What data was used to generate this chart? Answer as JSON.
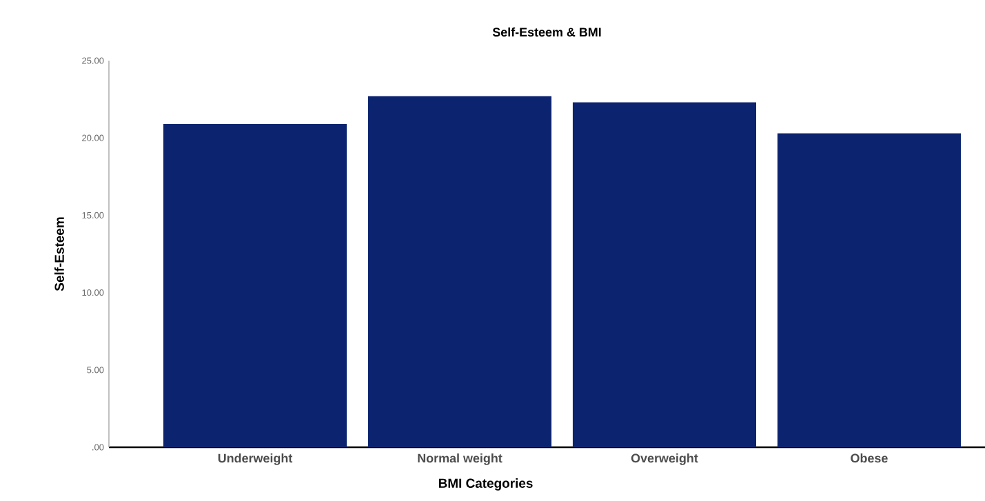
{
  "chart_data": {
    "type": "bar",
    "title": "Self-Esteem & BMI",
    "xlabel": "BMI Categories",
    "ylabel": "Self-Esteem",
    "categories": [
      "Underweight",
      "Normal weight",
      "Overweight",
      "Obese"
    ],
    "values": [
      20.9,
      22.7,
      22.3,
      20.3
    ],
    "color": "#0c2470",
    "ylim": [
      0,
      25
    ],
    "yticks": [
      {
        "value": 0,
        "label": ".00"
      },
      {
        "value": 5,
        "label": "5.00"
      },
      {
        "value": 10,
        "label": "10.00"
      },
      {
        "value": 15,
        "label": "15.00"
      },
      {
        "value": 20,
        "label": "20.00"
      },
      {
        "value": 25,
        "label": "25.00"
      }
    ]
  }
}
